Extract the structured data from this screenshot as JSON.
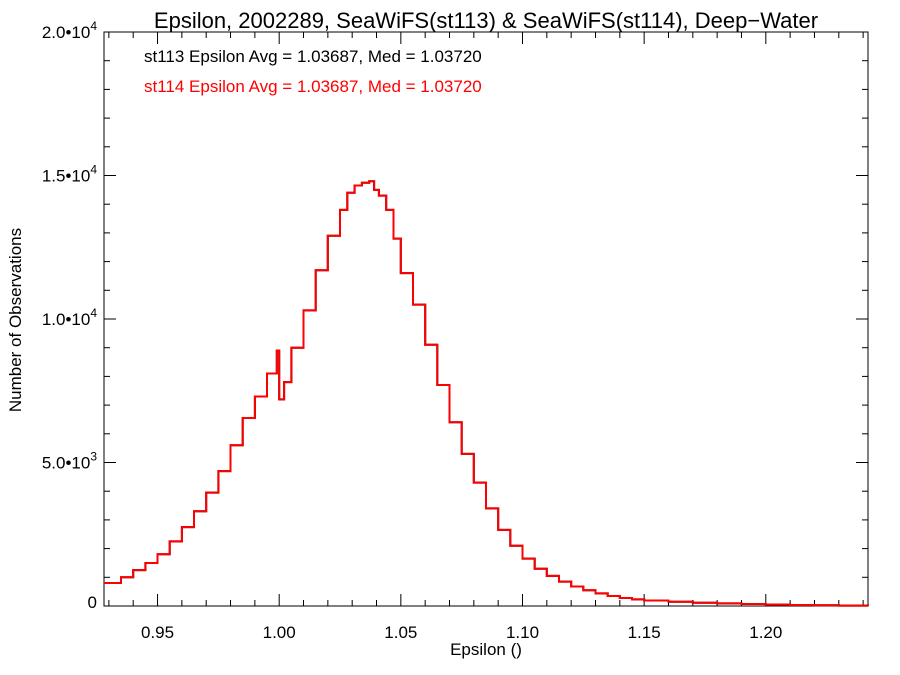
{
  "chart_data": {
    "type": "line",
    "title": "Epsilon, 2002289, SeaWiFS(st113) & SeaWiFS(st114), Deep−Water",
    "xlabel": "Epsilon ()",
    "ylabel": "Number of Observations",
    "xlim": [
      0.928,
      1.242
    ],
    "ylim": [
      0,
      20000
    ],
    "x_ticks": [
      {
        "value": 0.95,
        "label": "0.95"
      },
      {
        "value": 1.0,
        "label": "1.00"
      },
      {
        "value": 1.05,
        "label": "1.05"
      },
      {
        "value": 1.1,
        "label": "1.10"
      },
      {
        "value": 1.15,
        "label": "1.15"
      },
      {
        "value": 1.2,
        "label": "1.20"
      }
    ],
    "y_ticks": [
      {
        "value": 0,
        "mantissa": "0",
        "exp": ""
      },
      {
        "value": 5000,
        "mantissa": "5.0•10",
        "exp": "3"
      },
      {
        "value": 10000,
        "mantissa": "1.0•10",
        "exp": "4"
      },
      {
        "value": 15000,
        "mantissa": "1.5•10",
        "exp": "4"
      },
      {
        "value": 20000,
        "mantissa": "2.0•10",
        "exp": "4"
      }
    ],
    "grid": false,
    "annotations": [
      {
        "text": "st113 Epsilon Avg = 1.03687, Med = 1.03720",
        "color": "#000000"
      },
      {
        "text": "st114 Epsilon Avg = 1.03687, Med = 1.03720",
        "color": "#ff0000"
      }
    ],
    "series": [
      {
        "color": "#000000",
        "style": "step",
        "x": [
          0.928,
          0.935,
          0.94,
          0.945,
          0.95,
          0.955,
          0.96,
          0.965,
          0.97,
          0.975,
          0.98,
          0.985,
          0.99,
          0.995,
          0.999,
          1.0,
          1.002,
          1.005,
          1.01,
          1.015,
          1.02,
          1.025,
          1.028,
          1.031,
          1.034,
          1.037,
          1.039,
          1.041,
          1.044,
          1.047,
          1.05,
          1.055,
          1.06,
          1.065,
          1.07,
          1.075,
          1.08,
          1.085,
          1.09,
          1.095,
          1.1,
          1.105,
          1.11,
          1.115,
          1.12,
          1.125,
          1.13,
          1.135,
          1.14,
          1.145,
          1.15,
          1.16,
          1.17,
          1.18,
          1.19,
          1.2,
          1.21,
          1.22,
          1.23,
          1.242
        ],
        "y": [
          800,
          1000,
          1250,
          1500,
          1800,
          2250,
          2750,
          3300,
          3950,
          4700,
          5600,
          6550,
          7300,
          8100,
          8900,
          7200,
          7800,
          9000,
          10300,
          11700,
          12900,
          13800,
          14400,
          14650,
          14750,
          14800,
          14500,
          14300,
          13800,
          12800,
          11600,
          10500,
          9100,
          7700,
          6400,
          5300,
          4300,
          3400,
          2650,
          2100,
          1650,
          1300,
          1050,
          850,
          680,
          550,
          440,
          350,
          280,
          230,
          190,
          150,
          115,
          90,
          70,
          50,
          35,
          25,
          15,
          10
        ]
      },
      {
        "color": "#ff0000",
        "style": "step",
        "x": [
          0.928,
          0.935,
          0.94,
          0.945,
          0.95,
          0.955,
          0.96,
          0.965,
          0.97,
          0.975,
          0.98,
          0.985,
          0.99,
          0.995,
          0.999,
          1.0,
          1.002,
          1.005,
          1.01,
          1.015,
          1.02,
          1.025,
          1.028,
          1.031,
          1.034,
          1.037,
          1.039,
          1.041,
          1.044,
          1.047,
          1.05,
          1.055,
          1.06,
          1.065,
          1.07,
          1.075,
          1.08,
          1.085,
          1.09,
          1.095,
          1.1,
          1.105,
          1.11,
          1.115,
          1.12,
          1.125,
          1.13,
          1.135,
          1.14,
          1.145,
          1.15,
          1.16,
          1.17,
          1.18,
          1.19,
          1.2,
          1.21,
          1.22,
          1.23,
          1.242
        ],
        "y": [
          800,
          1000,
          1250,
          1500,
          1800,
          2250,
          2750,
          3300,
          3950,
          4700,
          5600,
          6550,
          7300,
          8100,
          8900,
          7200,
          7800,
          9000,
          10300,
          11700,
          12900,
          13800,
          14400,
          14650,
          14750,
          14800,
          14500,
          14300,
          13800,
          12800,
          11600,
          10500,
          9100,
          7700,
          6400,
          5300,
          4300,
          3400,
          2650,
          2100,
          1650,
          1300,
          1050,
          850,
          680,
          550,
          440,
          350,
          280,
          230,
          190,
          150,
          115,
          90,
          70,
          50,
          35,
          25,
          15,
          10
        ]
      }
    ]
  }
}
